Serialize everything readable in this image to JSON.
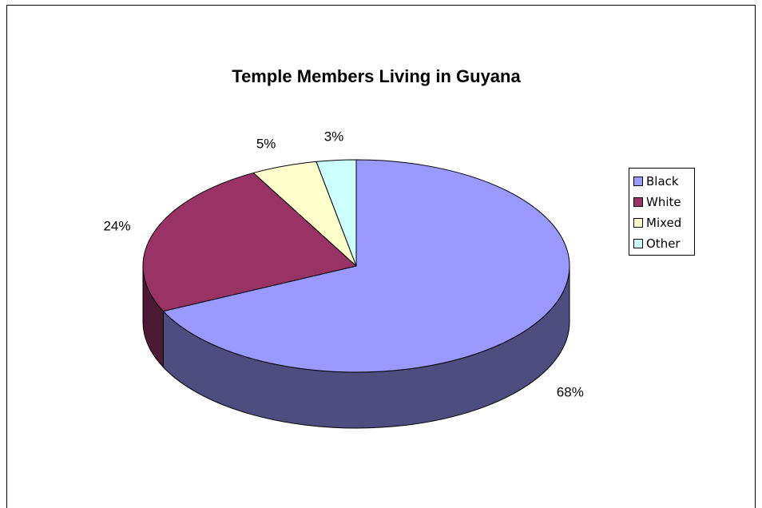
{
  "chart_data": {
    "type": "pie",
    "title": "Temple Members Living in Guyana",
    "categories": [
      "Black",
      "White",
      "Mixed",
      "Other"
    ],
    "values": [
      68,
      24,
      5,
      3
    ],
    "labels": [
      "68%",
      "24%",
      "5%",
      "3%"
    ],
    "colors": [
      "#9999ff",
      "#993366",
      "#ffffcc",
      "#ccffff"
    ],
    "side_colors": [
      "#4d4d80",
      "#4d1a33",
      "#808066",
      "#668080"
    ],
    "legend_position": "right",
    "three_d": true
  }
}
